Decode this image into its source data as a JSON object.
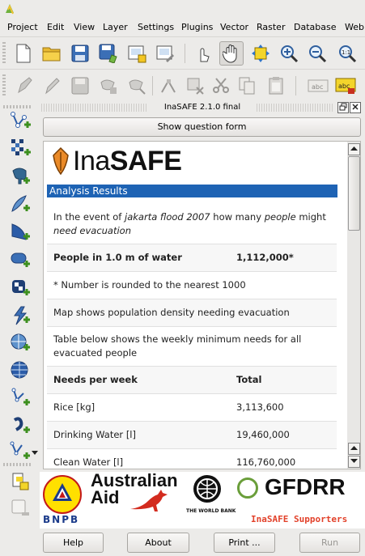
{
  "menu": [
    "Project",
    "Edit",
    "View",
    "Layer",
    "Settings",
    "Plugins",
    "Vector",
    "Raster",
    "Database",
    "Web"
  ],
  "dock": {
    "title": "InaSAFE 2.1.0 final",
    "show_question_form": "Show question form",
    "brand_ina": "Ina",
    "brand_safe": "SAFE",
    "results_header": "Analysis Results",
    "question": {
      "pre": "In the event of ",
      "hazard": "jakarta flood 2007",
      "mid": " how many ",
      "exposure": "people",
      "post_1": " might",
      "post_2": "need evacuation"
    },
    "affected_label": "People in 1.0 m of water",
    "affected_value": "1,112,000*",
    "rounding_note": "* Number is rounded to the nearest 1000",
    "map_note": "Map shows population density needing evacuation",
    "table_note_1": "Table below shows the weekly minimum needs for all",
    "table_note_2": "evacuated people",
    "needs_header": "Needs per week",
    "total_header": "Total",
    "needs": [
      {
        "item": "Rice [kg]",
        "total": "3,113,600"
      },
      {
        "item": "Drinking Water [l]",
        "total": "19,460,000"
      },
      {
        "item": "Clean Water [l]",
        "total": "116,760,000"
      }
    ],
    "logos": {
      "bnpb": "BNPB",
      "australian": "Australian",
      "aid": "Aid",
      "world_bank": "THE WORLD BANK",
      "gfdrr": "GFDRR",
      "supporters": "InaSAFE Supporters"
    },
    "buttons": {
      "help": "Help",
      "about": "About",
      "print": "Print ...",
      "run": "Run"
    }
  },
  "colors": {
    "results_bar": "#1e63b4",
    "supporters_text": "#e2412a",
    "window_bg": "#ecebe9"
  }
}
